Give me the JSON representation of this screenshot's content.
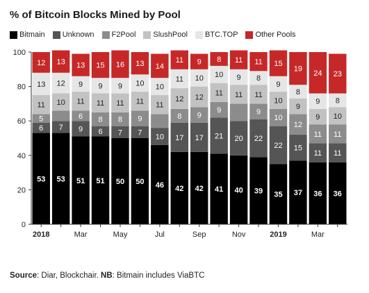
{
  "title": "% of Bitcoin Blocks Mined by Pool",
  "footnote": {
    "source_label": "Source",
    "source_text": ": Diar, Blockchair. ",
    "nb_label": "NB",
    "nb_text": ": Bitmain includes ViaBTC"
  },
  "colors": {
    "Bitmain": "#000000",
    "Unknown": "#555555",
    "F2Pool": "#8c8c8c",
    "SlushPool": "#c2c2c2",
    "BTC.TOP": "#e6e6e6",
    "Other Pools": "#c62828"
  },
  "chart_data": {
    "type": "bar",
    "stacked": true,
    "ylim": [
      0,
      100
    ],
    "yticks": [
      0,
      20,
      40,
      60,
      80,
      100
    ],
    "grid": false,
    "legend_position": "top-left",
    "x_tick_labels": [
      {
        "index": 0,
        "label": "2018",
        "bold": true
      },
      {
        "index": 2,
        "label": "Mar",
        "bold": false
      },
      {
        "index": 4,
        "label": "May",
        "bold": false
      },
      {
        "index": 6,
        "label": "Jul",
        "bold": false
      },
      {
        "index": 8,
        "label": "Sep",
        "bold": false
      },
      {
        "index": 10,
        "label": "Nov",
        "bold": false
      },
      {
        "index": 12,
        "label": "2019",
        "bold": true
      },
      {
        "index": 14,
        "label": "Mar",
        "bold": false
      }
    ],
    "series": [
      {
        "name": "Bitmain",
        "values": [
          53,
          53,
          51,
          51,
          50,
          50,
          46,
          42,
          42,
          41,
          40,
          39,
          35,
          37,
          36,
          36
        ],
        "labels": [
          "53",
          "53",
          "51",
          "51",
          "50",
          "50",
          "46",
          "42",
          "42",
          "41",
          "40",
          "39",
          "35",
          "37",
          "36",
          "36"
        ]
      },
      {
        "name": "Unknown",
        "values": [
          6,
          7,
          9,
          6,
          7,
          7,
          10,
          17,
          17,
          21,
          20,
          22,
          22,
          15,
          11,
          11
        ],
        "labels": [
          "6",
          "7",
          "9",
          "6",
          "7",
          "7",
          "10",
          "17",
          "17",
          "21",
          "20",
          "22",
          "22",
          "15",
          "11",
          "11"
        ]
      },
      {
        "name": "F2Pool",
        "values": [
          5,
          6,
          6,
          8,
          8,
          9,
          8,
          8,
          9,
          9,
          10,
          9,
          10,
          12,
          11,
          11
        ],
        "labels": [
          "5",
          "",
          "6",
          "8",
          "8",
          "9",
          "",
          "8",
          "9",
          "9",
          "",
          "9",
          "10",
          "12",
          "11",
          "11"
        ]
      },
      {
        "name": "SlushPool",
        "values": [
          11,
          10,
          11,
          11,
          11,
          11,
          11,
          12,
          12,
          11,
          11,
          11,
          10,
          9,
          9,
          10
        ],
        "labels": [
          "11",
          "10",
          "11",
          "11",
          "11",
          "11",
          "11",
          "12",
          "12",
          "11",
          "11",
          "11",
          "10",
          "9",
          "9",
          "10"
        ]
      },
      {
        "name": "BTC.TOP",
        "values": [
          13,
          12,
          9,
          9,
          9,
          10,
          10,
          11,
          10,
          10,
          9,
          8,
          9,
          8,
          9,
          8
        ],
        "labels": [
          "13",
          "12",
          "9",
          "9",
          "9",
          "10",
          "10",
          "11",
          "10",
          "10",
          "9",
          "8",
          "9",
          "8",
          "9",
          "8"
        ]
      },
      {
        "name": "Other Pools",
        "values": [
          12,
          13,
          13,
          15,
          16,
          13,
          14,
          11,
          9,
          8,
          11,
          11,
          15,
          19,
          24,
          23
        ],
        "labels": [
          "12",
          "13",
          "13",
          "15",
          "16",
          "13",
          "14",
          "11",
          "9",
          "8",
          "11",
          "11",
          "15",
          "19",
          "24",
          "23"
        ]
      }
    ]
  }
}
